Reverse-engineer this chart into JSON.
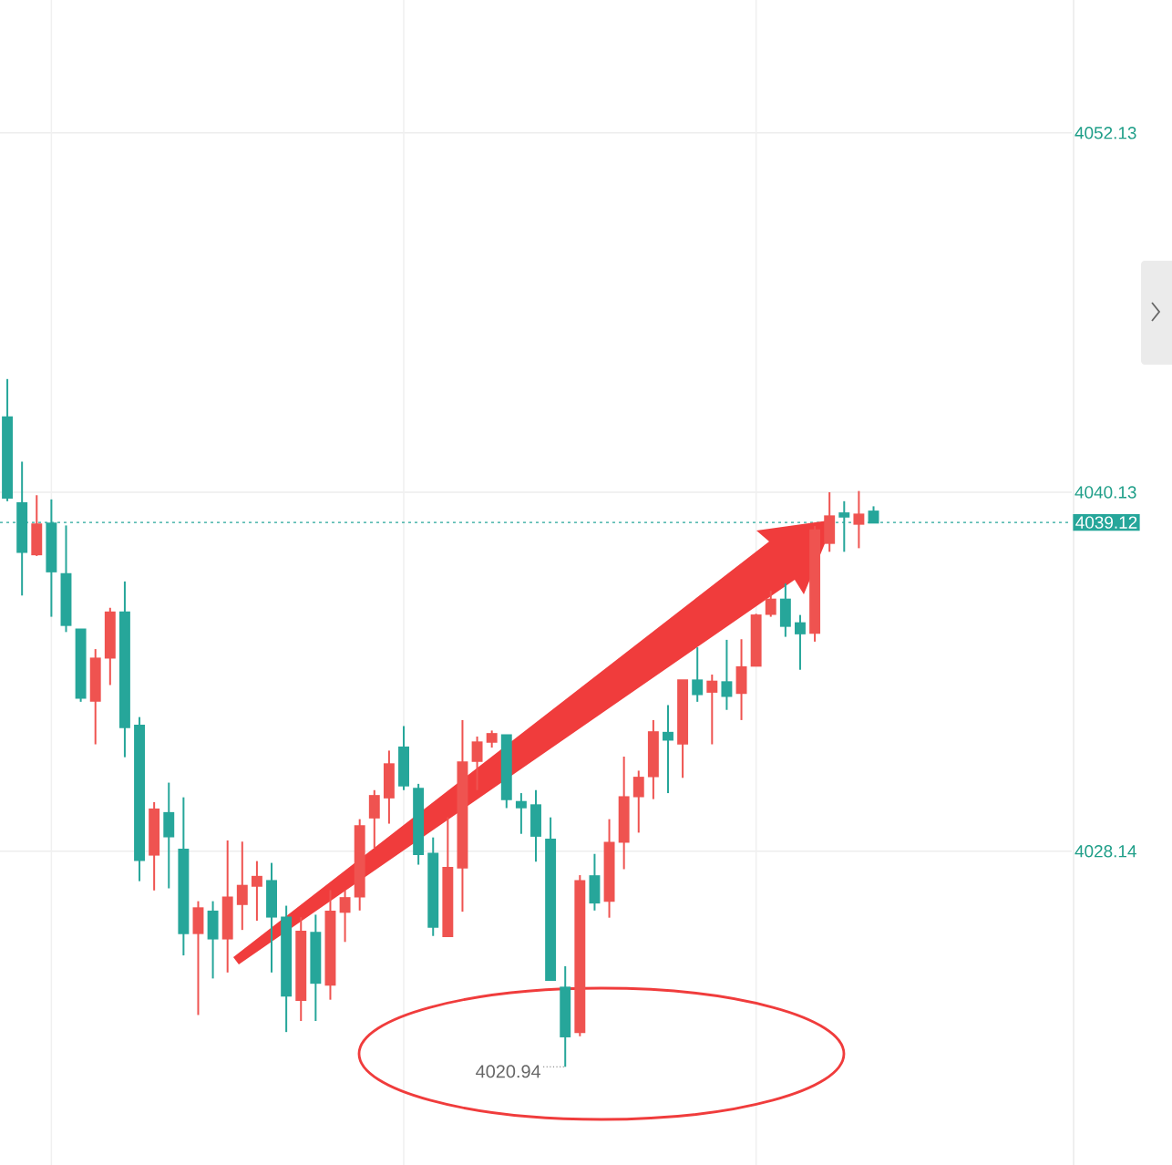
{
  "chart_data": {
    "type": "candlestick",
    "categories": [
      null,
      null,
      null,
      null,
      null,
      null,
      null,
      null,
      null,
      null,
      null,
      null,
      null,
      null,
      null,
      null,
      null,
      null,
      null,
      null,
      null,
      null,
      null,
      null,
      null,
      null,
      null,
      null,
      null,
      null,
      null,
      null,
      null,
      null,
      null,
      null,
      null,
      null,
      null,
      null,
      null,
      null,
      null,
      null,
      null,
      null,
      null,
      null,
      null,
      null,
      null,
      null,
      null,
      null,
      null,
      null,
      null,
      null,
      null,
      null,
      null,
      null,
      null,
      null,
      null,
      null,
      null,
      null,
      null,
      null,
      null,
      null,
      null
    ],
    "ohlc": [
      [
        4042.63,
        4043.91,
        4039.83,
        4039.95
      ],
      [
        4039.76,
        4041.15,
        4036.68,
        4038.14
      ],
      [
        4038.06,
        4040.03,
        4038.0,
        4039.05
      ],
      [
        4039.08,
        4039.89,
        4035.97,
        4037.49
      ],
      [
        4037.39,
        4039.02,
        4035.46,
        4035.7
      ],
      [
        4035.54,
        4035.56,
        4033.13,
        4033.27
      ],
      [
        4033.17,
        4034.89,
        4031.71,
        4034.57
      ],
      [
        4034.61,
        4036.27,
        4033.69,
        4036.11
      ],
      [
        4036.11,
        4037.15,
        4031.28,
        4032.29
      ],
      [
        4032.33,
        4032.62,
        4027.14,
        4027.85
      ],
      [
        4028.03,
        4029.78,
        4026.83,
        4029.53
      ],
      [
        4029.41,
        4030.43,
        4026.9,
        4028.64
      ],
      [
        4028.19,
        4029.94,
        4024.66,
        4025.41
      ],
      [
        4025.41,
        4026.47,
        4022.67,
        4026.23
      ],
      [
        4026.12,
        4026.47,
        4023.89,
        4025.23
      ],
      [
        4025.23,
        4028.5,
        4024.09,
        4026.59
      ],
      [
        4026.38,
        4028.46,
        4025.51,
        4026.98
      ],
      [
        4026.99,
        4027.81,
        4025.82,
        4027.28
      ],
      [
        4027.14,
        4027.75,
        4024.09,
        4025.96
      ],
      [
        4025.92,
        4026.32,
        4022.1,
        4023.32
      ],
      [
        4023.18,
        4025.94,
        4022.47,
        4025.45
      ],
      [
        4025.41,
        4026.02,
        4022.47,
        4023.75
      ],
      [
        4023.69,
        4026.84,
        4023.18,
        4026.12
      ],
      [
        4026.12,
        4026.84,
        4025.11,
        4026.57
      ],
      [
        4026.63,
        4029.21,
        4026.16,
        4028.97
      ],
      [
        4029.27,
        4030.18,
        4028.25,
        4029.98
      ],
      [
        4029.94,
        4031.5,
        4029.06,
        4031.04
      ],
      [
        4031.6,
        4032.32,
        4030.18,
        4030.34
      ],
      [
        4030.22,
        4030.39,
        4027.69,
        4028.05
      ],
      [
        4028.05,
        4028.6,
        4025.31,
        4025.62
      ],
      [
        4025.31,
        4029.27,
        4025.31,
        4027.58
      ],
      [
        4027.6,
        4032.52,
        4026.12,
        4031.1
      ],
      [
        4031.16,
        4031.97,
        4030.18,
        4031.77
      ],
      [
        4031.8,
        4032.17,
        4031.6,
        4032.05
      ],
      [
        4032.01,
        4032.01,
        4029.58,
        4029.88
      ],
      [
        4029.78,
        4030.08,
        4028.72,
        4029.61
      ],
      [
        4029.67,
        4030.18,
        4027.79,
        4028.66
      ],
      [
        4028.52,
        4029.27,
        4023.85,
        4023.85
      ],
      [
        4023.58,
        4024.3,
        4020.94,
        4021.96
      ],
      [
        4022.1,
        4027.34,
        4021.96,
        4027.14
      ],
      [
        4027.3,
        4028.05,
        4026.16,
        4026.43
      ],
      [
        4026.49,
        4029.21,
        4025.92,
        4028.42
      ],
      [
        4028.46,
        4031.3,
        4027.54,
        4029.94
      ],
      [
        4029.98,
        4030.83,
        4028.76,
        4030.59
      ],
      [
        4030.65,
        4032.52,
        4029.88,
        4032.11
      ],
      [
        4032.09,
        4033.02,
        4030.08,
        4031.87
      ],
      [
        4031.74,
        4033.84,
        4030.59,
        4033.84
      ],
      [
        4033.84,
        4034.95,
        4033.13,
        4033.39
      ],
      [
        4033.47,
        4034.04,
        4031.71,
        4033.8
      ],
      [
        4033.78,
        4035.2,
        4032.86,
        4033.33
      ],
      [
        4033.43,
        4035.22,
        4032.52,
        4034.28
      ],
      [
        4034.34,
        4036.07,
        4034.34,
        4036.01
      ],
      [
        4036.07,
        4036.84,
        4035.97,
        4036.54
      ],
      [
        4036.54,
        4037.08,
        4035.3,
        4035.67
      ],
      [
        4035.75,
        4036.03,
        4034.2,
        4035.42
      ],
      [
        4035.44,
        4039.0,
        4035.14,
        4038.85
      ],
      [
        4038.44,
        4040.13,
        4038.14,
        4039.32
      ],
      [
        4039.42,
        4039.83,
        4038.14,
        4039.32
      ],
      [
        4039.08,
        4040.17,
        4038.26,
        4039.38
      ],
      [
        4039.48,
        4039.66,
        4039.12,
        4039.12
      ],
      null,
      null,
      null,
      null,
      null,
      null,
      null,
      null,
      null,
      null,
      null,
      null,
      null
    ],
    "colors": [
      "#26a69a",
      "#26a69a",
      "#ef5350",
      "#26a69a",
      "#26a69a",
      "#26a69a",
      "#ef5350",
      "#ef5350",
      "#26a69a",
      "#26a69a",
      "#ef5350",
      "#26a69a",
      "#26a69a",
      "#ef5350",
      "#26a69a",
      "#ef5350",
      "#ef5350",
      "#ef5350",
      "#26a69a",
      "#26a69a",
      "#ef5350",
      "#26a69a",
      "#ef5350",
      "#ef5350",
      "#ef5350",
      "#ef5350",
      "#ef5350",
      "#26a69a",
      "#26a69a",
      "#26a69a",
      "#ef5350",
      "#ef5350",
      "#ef5350",
      "#ef5350",
      "#26a69a",
      "#26a69a",
      "#26a69a",
      "#26a69a",
      "#26a69a",
      "#ef5350",
      "#26a69a",
      "#ef5350",
      "#ef5350",
      "#ef5350",
      "#ef5350",
      "#26a69a",
      "#ef5350",
      "#26a69a",
      "#ef5350",
      "#26a69a",
      "#ef5350",
      "#ef5350",
      "#ef5350",
      "#26a69a",
      "#26a69a",
      "#ef5350",
      "#ef5350",
      "#26a69a",
      "#ef5350",
      "#26a69a",
      null,
      null,
      null,
      null,
      null,
      null,
      null,
      null,
      null,
      null,
      null,
      null,
      null
    ],
    "ylim": [
      4017.66,
      4056.57
    ],
    "yticks": [
      4028.14,
      4040.13,
      4052.13
    ],
    "tick_labels": "y",
    "grid": true,
    "ref_lines": [
      {
        "axis": "y",
        "value": 4039.12,
        "label": "4039.12",
        "color": "#26a69a",
        "line_style": "dotted"
      }
    ],
    "annotations": [
      "4020.94"
    ]
  }
}
